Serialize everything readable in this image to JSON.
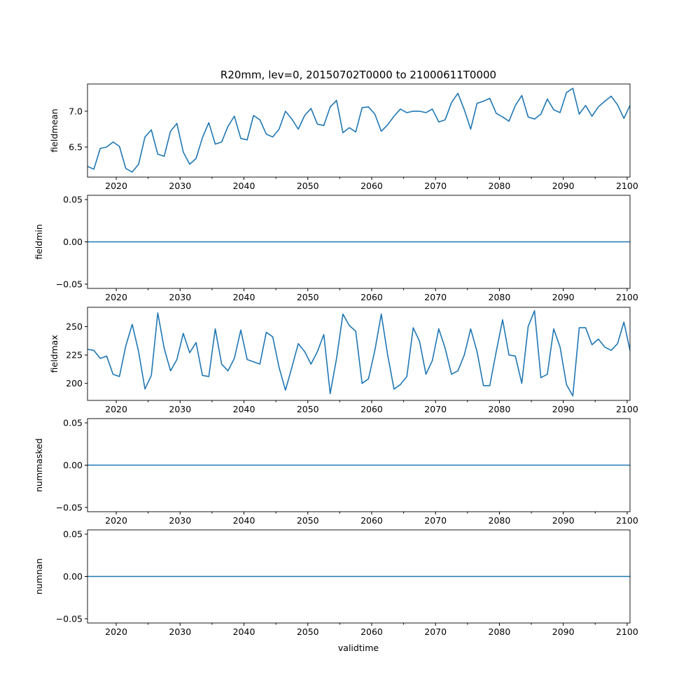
{
  "chart_data": {
    "type": "line",
    "title": "R20mm, lev=0, 20150702T0000 to 21000611T0000",
    "xlabel": "validtime",
    "xlim": [
      2015.5,
      2100.45
    ],
    "xticks": [
      "2020",
      "2030",
      "2040",
      "2050",
      "2060",
      "2070",
      "2080",
      "2090",
      "2100"
    ],
    "x_start": 2015.5,
    "x_last": 2100.45,
    "color": "#1f77b4",
    "panels": [
      {
        "ylabel": "fieldmean",
        "ylim": [
          6.08,
          7.38
        ],
        "yticks": [
          "6.5",
          "7.0"
        ],
        "ytick_values": [
          6.5,
          7.0
        ],
        "values": [
          6.23,
          6.19,
          6.48,
          6.5,
          6.57,
          6.51,
          6.2,
          6.15,
          6.26,
          6.64,
          6.74,
          6.4,
          6.37,
          6.72,
          6.83,
          6.43,
          6.26,
          6.34,
          6.63,
          6.84,
          6.54,
          6.57,
          6.79,
          6.93,
          6.62,
          6.6,
          6.94,
          6.88,
          6.68,
          6.64,
          6.75,
          7.0,
          6.89,
          6.75,
          6.94,
          7.04,
          6.82,
          6.8,
          7.06,
          7.15,
          6.7,
          6.77,
          6.71,
          7.05,
          7.06,
          6.96,
          6.72,
          6.81,
          6.93,
          7.03,
          6.98,
          7.0,
          7.0,
          6.98,
          7.03,
          6.85,
          6.88,
          7.12,
          7.25,
          7.02,
          6.75,
          7.11,
          7.14,
          7.18,
          6.97,
          6.92,
          6.86,
          7.08,
          7.22,
          6.92,
          6.89,
          6.96,
          7.17,
          7.02,
          6.98,
          7.26,
          7.32,
          6.96,
          7.08,
          6.93,
          7.06,
          7.14,
          7.21,
          7.09,
          6.9,
          7.08
        ]
      },
      {
        "ylabel": "fieldmin",
        "ylim": [
          -0.055,
          0.055
        ],
        "yticks": [
          "−0.05",
          "0.00",
          "0.05"
        ],
        "ytick_values": [
          -0.05,
          0,
          0.05
        ],
        "constant": 0
      },
      {
        "ylabel": "fieldmax",
        "ylim": [
          185,
          267
        ],
        "yticks": [
          "200",
          "225",
          "250"
        ],
        "ytick_values": [
          200,
          225,
          250
        ],
        "values": [
          230,
          229,
          222,
          224,
          208,
          206,
          233,
          252,
          228,
          195,
          207,
          262,
          231,
          211,
          221,
          244,
          227,
          236,
          207,
          206,
          248,
          217,
          211,
          222,
          247,
          221,
          219,
          217,
          245,
          241,
          214,
          194,
          214,
          235,
          228,
          217,
          228,
          243,
          191,
          222,
          261,
          251,
          246,
          200,
          204,
          229,
          261,
          225,
          195,
          199,
          206,
          249,
          237,
          208,
          220,
          248,
          231,
          208,
          211,
          225,
          248,
          228,
          198,
          198,
          228,
          256,
          225,
          224,
          200,
          250,
          264,
          205,
          208,
          248,
          232,
          199,
          189,
          249,
          249,
          234,
          239,
          232,
          229,
          235,
          254,
          229
        ]
      },
      {
        "ylabel": "nummasked",
        "ylim": [
          -0.055,
          0.055
        ],
        "yticks": [
          "−0.05",
          "0.00",
          "0.05"
        ],
        "ytick_values": [
          -0.05,
          0,
          0.05
        ],
        "constant": 0
      },
      {
        "ylabel": "numnan",
        "ylim": [
          -0.055,
          0.055
        ],
        "yticks": [
          "−0.05",
          "0.00",
          "0.05"
        ],
        "ytick_values": [
          -0.05,
          0,
          0.05
        ],
        "constant": 0
      }
    ]
  }
}
